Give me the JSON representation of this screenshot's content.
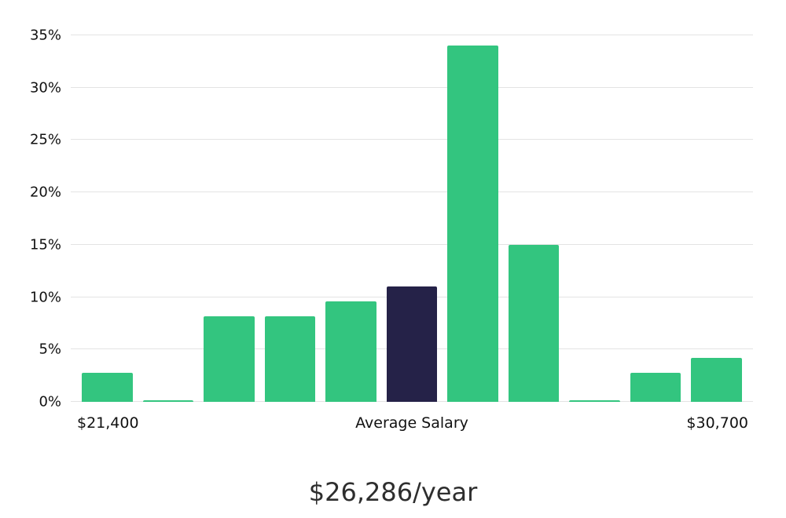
{
  "page": {
    "background": "#ffffff"
  },
  "chart_data": {
    "type": "bar",
    "title": "$26,286/year",
    "x_axis": {
      "left_label": "$21,400",
      "center_label": "Average Salary",
      "right_label": "$30,700"
    },
    "ylim": [
      0,
      35
    ],
    "yticks": [
      0,
      5,
      10,
      15,
      20,
      25,
      30,
      35
    ],
    "ytick_suffix": "%",
    "grid": true,
    "legend": "none",
    "values": [
      2.8,
      0.15,
      8.2,
      8.2,
      9.6,
      11,
      34,
      15,
      0.15,
      2.8,
      4.2
    ],
    "highlight_index": 5,
    "bar_color": "#33c57f",
    "highlight_color": "#252248",
    "gridline_color": "#e3e3e3",
    "text_color": "#111111"
  }
}
